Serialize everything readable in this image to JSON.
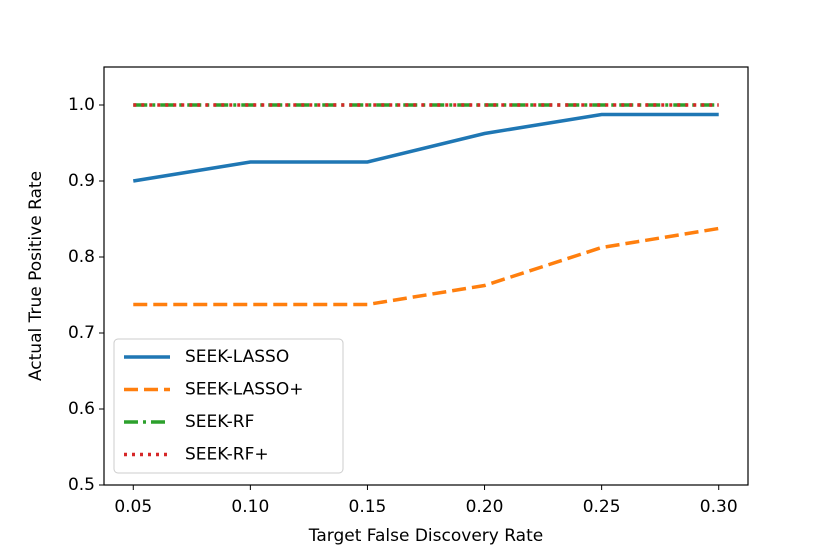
{
  "chart_data": {
    "type": "line",
    "x_label": "Target False Discovery Rate",
    "y_label": "Actual True Positive Rate",
    "x": [
      0.05,
      0.1,
      0.15,
      0.2,
      0.25,
      0.3
    ],
    "series": [
      {
        "name": "SEEK-LASSO",
        "color": "#1f77b4",
        "style": "solid",
        "values": [
          0.9,
          0.925,
          0.925,
          0.9625,
          0.9875,
          0.9875
        ]
      },
      {
        "name": "SEEK-LASSO+",
        "color": "#ff7f0e",
        "style": "dashed",
        "values": [
          0.7375,
          0.7375,
          0.7375,
          0.7625,
          0.8125,
          0.8375
        ]
      },
      {
        "name": "SEEK-RF",
        "color": "#2ca02c",
        "style": "dashdot",
        "values": [
          1.0,
          1.0,
          1.0,
          1.0,
          1.0,
          1.0
        ]
      },
      {
        "name": "SEEK-RF+",
        "color": "#d62728",
        "style": "dotted",
        "values": [
          1.0,
          1.0,
          1.0,
          1.0,
          1.0,
          1.0
        ]
      }
    ],
    "xlim": [
      0.0375,
      0.3125
    ],
    "ylim": [
      0.5,
      1.05
    ],
    "xticks": [
      0.05,
      {
        "value": 0.1,
        "label": "0.10"
      },
      0.15,
      {
        "value": 0.2,
        "label": "0.20"
      },
      0.25,
      {
        "value": 0.3,
        "label": "0.30"
      }
    ],
    "yticks": [
      0.5,
      0.6,
      0.7,
      0.8,
      0.9,
      {
        "value": 1.0,
        "label": "1.0"
      }
    ],
    "legend": "lower left",
    "grid": false
  }
}
